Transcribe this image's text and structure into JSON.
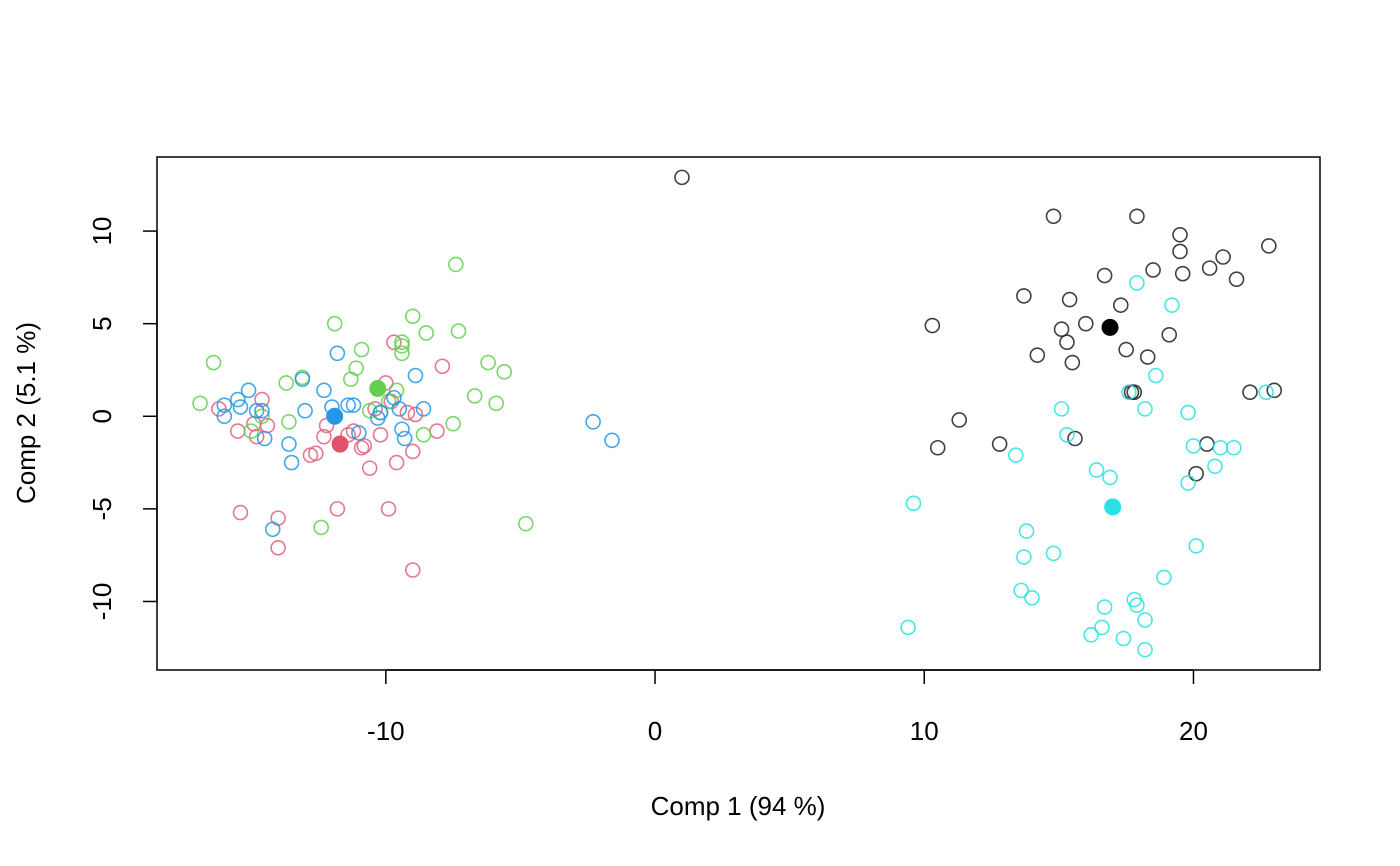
{
  "chart_data": {
    "type": "scatter",
    "title": "",
    "xlabel": "Comp 1 (94 %)",
    "ylabel": "Comp 2 (5.1 %)",
    "xlim": [
      -18.5,
      24.7
    ],
    "ylim": [
      -13.7,
      14.0
    ],
    "xticks": [
      -10,
      0,
      10,
      20
    ],
    "yticks": [
      -10,
      -5,
      0,
      5,
      10
    ],
    "xtick_labels": [
      "-10",
      "0",
      "10",
      "20"
    ],
    "ytick_labels": [
      "-10",
      "-5",
      "0",
      "5",
      "10"
    ],
    "grid": false,
    "legend": "none",
    "series": [
      {
        "color": "#e0607e",
        "points": [
          [
            -16.2,
            0.4
          ],
          [
            -15.5,
            -0.8
          ],
          [
            -15.4,
            -5.2
          ],
          [
            -14.9,
            -0.4
          ],
          [
            -14.8,
            -1.1
          ],
          [
            -14.6,
            0.9
          ],
          [
            -14.4,
            -0.5
          ],
          [
            -14.0,
            -5.5
          ],
          [
            -14.0,
            -7.1
          ],
          [
            -12.8,
            -2.1
          ],
          [
            -12.6,
            -2.0
          ],
          [
            -12.3,
            -1.1
          ],
          [
            -12.2,
            -0.5
          ],
          [
            -11.8,
            -5.0
          ],
          [
            -11.4,
            -1.0
          ],
          [
            -11.2,
            -0.8
          ],
          [
            -10.9,
            -1.7
          ],
          [
            -10.8,
            -1.6
          ],
          [
            -10.6,
            -2.8
          ],
          [
            -10.4,
            0.4
          ],
          [
            -10.2,
            -1.0
          ],
          [
            -10.0,
            1.8
          ],
          [
            -9.9,
            -5.0
          ],
          [
            -9.8,
            0.8
          ],
          [
            -9.7,
            4.0
          ],
          [
            -9.6,
            -2.5
          ],
          [
            -9.2,
            0.2
          ],
          [
            -9.0,
            -1.9
          ],
          [
            -9.0,
            -8.3
          ],
          [
            -8.9,
            0.1
          ],
          [
            -8.1,
            -0.8
          ],
          [
            -7.9,
            2.7
          ],
          [
            -11.7,
            -1.5
          ]
        ]
      },
      {
        "color": "#61d04f",
        "points": [
          [
            -16.9,
            0.7
          ],
          [
            -16.4,
            2.9
          ],
          [
            -15.0,
            -0.8
          ],
          [
            -14.6,
            0.0
          ],
          [
            -13.7,
            1.8
          ],
          [
            -13.6,
            -0.3
          ],
          [
            -13.1,
            2.1
          ],
          [
            -12.4,
            -6.0
          ],
          [
            -11.9,
            5.0
          ],
          [
            -11.3,
            2.0
          ],
          [
            -11.1,
            2.6
          ],
          [
            -10.9,
            3.6
          ],
          [
            -10.6,
            0.3
          ],
          [
            -10.2,
            0.2
          ],
          [
            -9.9,
            0.8
          ],
          [
            -9.6,
            1.4
          ],
          [
            -9.4,
            3.8
          ],
          [
            -9.4,
            3.4
          ],
          [
            -9.4,
            4.0
          ],
          [
            -9.0,
            5.4
          ],
          [
            -8.6,
            -1.0
          ],
          [
            -8.5,
            4.5
          ],
          [
            -7.5,
            -0.4
          ],
          [
            -7.4,
            8.2
          ],
          [
            -7.3,
            4.6
          ],
          [
            -6.7,
            1.1
          ],
          [
            -6.2,
            2.9
          ],
          [
            -5.9,
            0.7
          ],
          [
            -5.6,
            2.4
          ],
          [
            -4.8,
            -5.8
          ],
          [
            -10.3,
            1.5
          ]
        ]
      },
      {
        "color": "#2297e6",
        "points": [
          [
            -16.0,
            0.0
          ],
          [
            -16.0,
            0.6
          ],
          [
            -15.5,
            0.9
          ],
          [
            -15.4,
            0.5
          ],
          [
            -15.1,
            1.4
          ],
          [
            -14.8,
            0.3
          ],
          [
            -14.6,
            0.3
          ],
          [
            -14.5,
            -1.2
          ],
          [
            -14.2,
            -6.1
          ],
          [
            -13.6,
            -1.5
          ],
          [
            -13.5,
            -2.5
          ],
          [
            -13.1,
            2.0
          ],
          [
            -13.0,
            0.3
          ],
          [
            -12.3,
            1.4
          ],
          [
            -12.0,
            0.5
          ],
          [
            -11.8,
            3.4
          ],
          [
            -11.4,
            0.6
          ],
          [
            -11.2,
            0.6
          ],
          [
            -11.0,
            -0.9
          ],
          [
            -10.3,
            -0.1
          ],
          [
            -10.2,
            0.2
          ],
          [
            -9.7,
            1.0
          ],
          [
            -9.5,
            0.4
          ],
          [
            -9.4,
            -0.7
          ],
          [
            -9.3,
            -1.2
          ],
          [
            -8.9,
            2.2
          ],
          [
            -8.6,
            0.4
          ],
          [
            -2.3,
            -0.3
          ],
          [
            -1.6,
            -1.3
          ],
          [
            -11.9,
            0.0
          ]
        ]
      },
      {
        "color": "#1f1f1f",
        "points": [
          [
            1.0,
            12.9
          ],
          [
            10.3,
            4.9
          ],
          [
            10.5,
            -1.7
          ],
          [
            11.3,
            -0.2
          ],
          [
            12.8,
            -1.5
          ],
          [
            13.7,
            6.5
          ],
          [
            14.2,
            3.3
          ],
          [
            14.8,
            10.8
          ],
          [
            15.1,
            4.7
          ],
          [
            15.3,
            4.0
          ],
          [
            15.4,
            6.3
          ],
          [
            15.5,
            2.9
          ],
          [
            15.6,
            -1.2
          ],
          [
            16.0,
            5.0
          ],
          [
            16.7,
            7.6
          ],
          [
            17.3,
            6.0
          ],
          [
            17.5,
            3.6
          ],
          [
            17.7,
            1.3
          ],
          [
            17.8,
            1.3
          ],
          [
            17.9,
            10.8
          ],
          [
            18.3,
            3.2
          ],
          [
            18.5,
            7.9
          ],
          [
            19.1,
            4.4
          ],
          [
            19.5,
            8.9
          ],
          [
            19.5,
            9.8
          ],
          [
            19.6,
            7.7
          ],
          [
            20.1,
            -3.1
          ],
          [
            20.5,
            -1.5
          ],
          [
            20.6,
            8.0
          ],
          [
            21.1,
            8.6
          ],
          [
            21.6,
            7.4
          ],
          [
            22.1,
            1.3
          ],
          [
            22.8,
            9.2
          ],
          [
            23.0,
            1.4
          ],
          [
            16.9,
            4.8
          ]
        ]
      },
      {
        "color": "#28e2e5",
        "points": [
          [
            9.4,
            -11.4
          ],
          [
            9.6,
            -4.7
          ],
          [
            13.4,
            -2.1
          ],
          [
            13.6,
            -9.4
          ],
          [
            13.7,
            -7.6
          ],
          [
            13.8,
            -6.2
          ],
          [
            14.0,
            -9.8
          ],
          [
            14.8,
            -7.4
          ],
          [
            15.1,
            0.4
          ],
          [
            15.3,
            -1.0
          ],
          [
            16.2,
            -11.8
          ],
          [
            16.4,
            -2.9
          ],
          [
            16.6,
            -11.4
          ],
          [
            16.7,
            -10.3
          ],
          [
            16.9,
            -3.3
          ],
          [
            17.4,
            -12.0
          ],
          [
            17.6,
            1.3
          ],
          [
            17.8,
            -9.9
          ],
          [
            17.9,
            -10.2
          ],
          [
            17.9,
            7.2
          ],
          [
            18.2,
            -11.0
          ],
          [
            18.2,
            -12.6
          ],
          [
            18.2,
            0.4
          ],
          [
            18.6,
            2.2
          ],
          [
            18.9,
            -8.7
          ],
          [
            19.2,
            6.0
          ],
          [
            19.8,
            0.2
          ],
          [
            19.8,
            -3.6
          ],
          [
            20.0,
            -1.6
          ],
          [
            20.1,
            -7.0
          ],
          [
            20.8,
            -2.7
          ],
          [
            21.0,
            -1.7
          ],
          [
            21.5,
            -1.7
          ],
          [
            22.7,
            1.3
          ],
          [
            17.0,
            -4.9
          ]
        ]
      }
    ],
    "centroids": [
      {
        "color": "#df536b",
        "point": [
          -11.7,
          -1.5
        ]
      },
      {
        "color": "#61d04f",
        "point": [
          -10.3,
          1.5
        ]
      },
      {
        "color": "#2297e6",
        "point": [
          -11.9,
          0.0
        ]
      },
      {
        "color": "#000000",
        "point": [
          16.9,
          4.8
        ]
      },
      {
        "color": "#28e2e5",
        "point": [
          17.0,
          -4.9
        ]
      }
    ]
  }
}
